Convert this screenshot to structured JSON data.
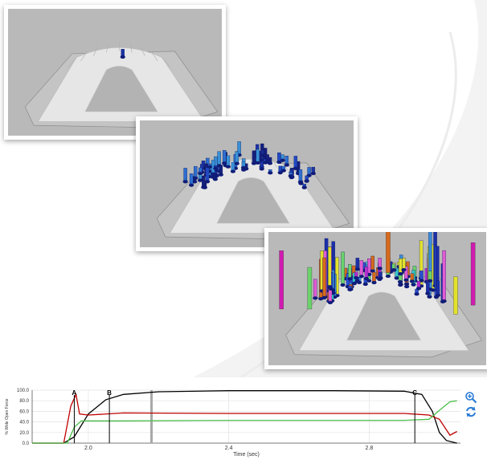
{
  "views": [
    {
      "id": "view-1",
      "label": "track-view-empty"
    },
    {
      "id": "view-2",
      "label": "track-view-medium"
    },
    {
      "id": "view-3",
      "label": "track-view-full"
    }
  ],
  "chart_data": {
    "type": "line",
    "xlabel": "Time (sec)",
    "ylabel": "% Wide Open Force",
    "xlim": [
      1.84,
      3.06
    ],
    "ylim": [
      0,
      100
    ],
    "x_ticks": [
      {
        "value": 2.0,
        "label": "2.0"
      },
      {
        "value": 2.4,
        "label": "2.4"
      },
      {
        "value": 2.8,
        "label": "2.8"
      }
    ],
    "y_ticks": [
      {
        "value": 0,
        "label": "0.0"
      },
      {
        "value": 20,
        "label": "20.0"
      },
      {
        "value": 40,
        "label": "40.0"
      },
      {
        "value": 60,
        "label": "60.0"
      },
      {
        "value": 80,
        "label": "80.0"
      },
      {
        "value": 100,
        "label": "100.0"
      }
    ],
    "markers": [
      {
        "label": "A",
        "x": 1.96
      },
      {
        "label": "B",
        "x": 2.06
      },
      {
        "label": "C",
        "x": 2.93
      }
    ],
    "cursor_x": 2.18,
    "series": [
      {
        "color": "#000000",
        "x": [
          1.84,
          1.93,
          1.96,
          2.0,
          2.05,
          2.1,
          2.2,
          2.4,
          2.7,
          2.9,
          2.95,
          2.98,
          3.0,
          3.02,
          3.05
        ],
        "y": [
          0,
          0,
          12,
          55,
          82,
          92,
          97,
          99,
          99,
          98,
          92,
          60,
          20,
          5,
          0
        ]
      },
      {
        "color": "#c00000",
        "x": [
          1.84,
          1.93,
          1.95,
          1.965,
          1.975,
          2.0,
          2.1,
          2.4,
          2.9,
          2.97,
          3.0,
          3.03,
          3.05
        ],
        "y": [
          0,
          0,
          70,
          92,
          55,
          53,
          57,
          56,
          56,
          53,
          45,
          15,
          22
        ]
      },
      {
        "color": "#4cc04c",
        "x": [
          1.84,
          1.94,
          1.96,
          1.98,
          2.1,
          2.4,
          2.9,
          2.97,
          3.0,
          3.03,
          3.05
        ],
        "y": [
          0,
          0,
          30,
          42,
          42,
          43,
          43,
          45,
          62,
          78,
          80
        ]
      }
    ]
  },
  "controls": {
    "zoom": "zoom-in-icon",
    "refresh": "refresh-icon"
  }
}
